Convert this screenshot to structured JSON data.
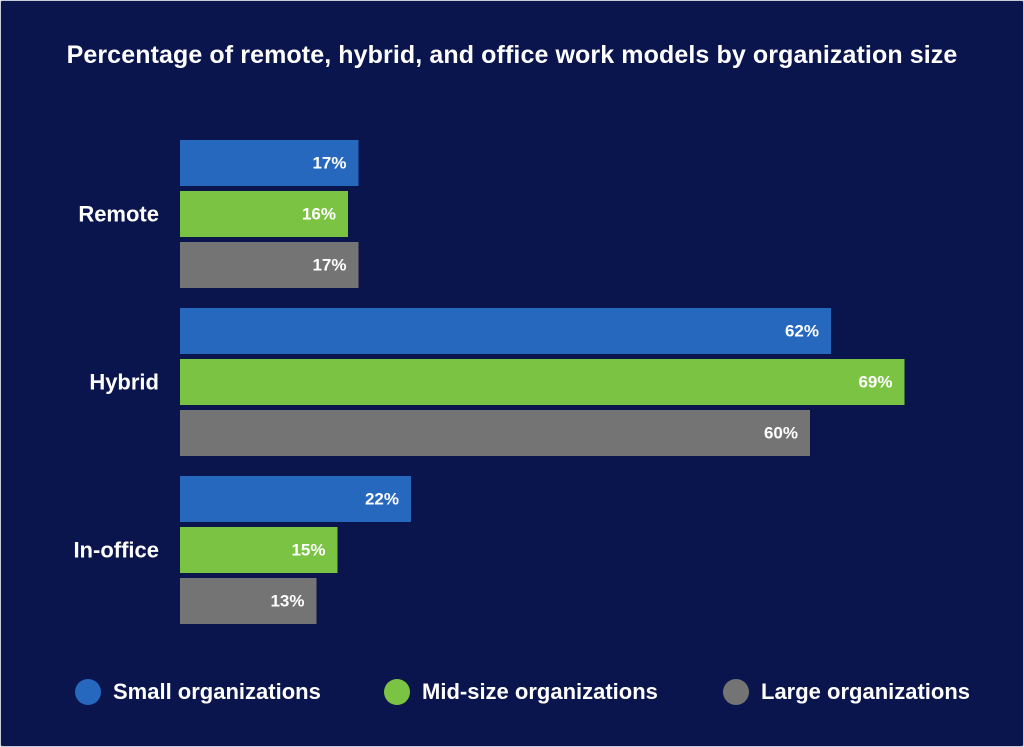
{
  "chart_data": {
    "type": "bar",
    "orientation": "horizontal",
    "title": "Percentage of remote, hybrid, and office work models by organization size",
    "categories": [
      "Remote",
      "Hybrid",
      "In-office"
    ],
    "series": [
      {
        "name": "Small organizations",
        "color": "#2768bf",
        "values": [
          17,
          62,
          22
        ],
        "labels": [
          "17%",
          "62%",
          "22%"
        ]
      },
      {
        "name": "Mid-size organizations",
        "color": "#7bc443",
        "values": [
          16,
          69,
          15
        ],
        "labels": [
          "16%",
          "69%",
          "15%"
        ]
      },
      {
        "name": "Large organizations",
        "color": "#747474",
        "values": [
          17,
          60,
          13
        ],
        "labels": [
          "17%",
          "60%",
          "13%"
        ]
      }
    ],
    "xlim": [
      0,
      70
    ],
    "grid": false,
    "legend_position": "bottom",
    "background_color": "#0b154d"
  }
}
